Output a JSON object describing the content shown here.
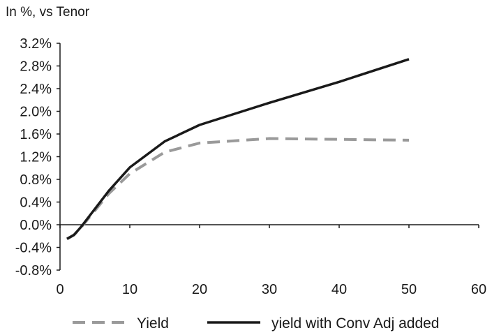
{
  "chart_data": {
    "type": "line",
    "title": "In %, vs Tenor",
    "xlabel": "",
    "ylabel": "",
    "xlim": [
      0,
      60
    ],
    "ylim": [
      -0.8,
      3.2
    ],
    "x_ticks": [
      0,
      10,
      20,
      30,
      40,
      50,
      60
    ],
    "y_ticks": [
      -0.8,
      -0.4,
      0.0,
      0.4,
      0.8,
      1.2,
      1.6,
      2.0,
      2.4,
      2.8,
      3.2
    ],
    "x_tick_labels": [
      "0",
      "10",
      "20",
      "30",
      "40",
      "50",
      "60"
    ],
    "y_tick_labels": [
      "-0.8%",
      "-0.4%",
      "0.0%",
      "0.4%",
      "0.8%",
      "1.2%",
      "1.6%",
      "2.0%",
      "2.4%",
      "2.8%",
      "3.2%"
    ],
    "grid": false,
    "legend_position": "bottom",
    "series": [
      {
        "name": "Yield",
        "style": "dashed",
        "color": "#9a9a9a",
        "x": [
          1,
          2,
          3,
          4,
          5,
          7,
          10,
          15,
          20,
          30,
          50
        ],
        "y": [
          -0.25,
          -0.18,
          -0.05,
          0.1,
          0.25,
          0.55,
          0.9,
          1.28,
          1.44,
          1.52,
          1.49
        ]
      },
      {
        "name": "yield with Conv Adj added",
        "style": "solid",
        "color": "#1a1a1a",
        "x": [
          1,
          2,
          3,
          4,
          5,
          7,
          10,
          15,
          20,
          30,
          40,
          50
        ],
        "y": [
          -0.25,
          -0.18,
          -0.04,
          0.12,
          0.28,
          0.6,
          1.01,
          1.47,
          1.76,
          2.15,
          2.52,
          2.92
        ]
      }
    ]
  }
}
